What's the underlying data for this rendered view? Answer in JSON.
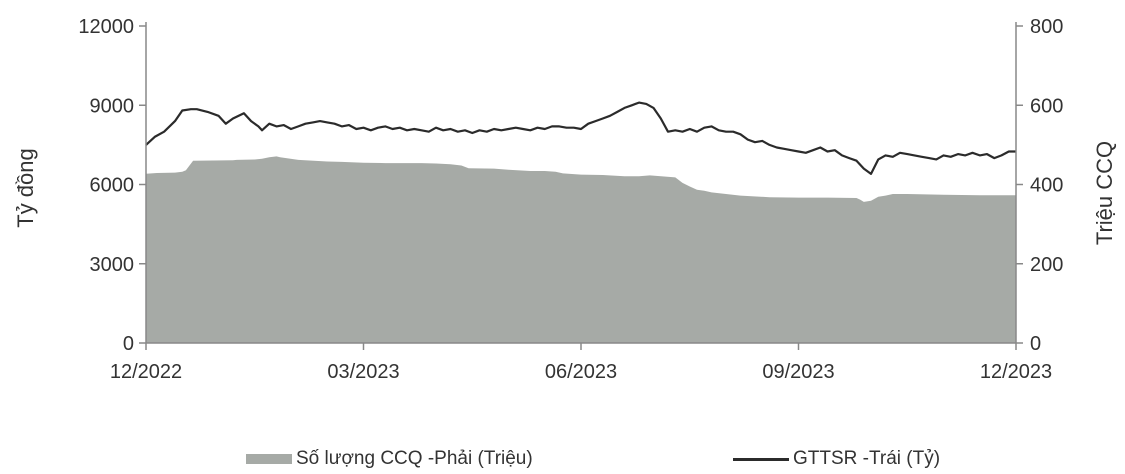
{
  "chart_data": {
    "type": "area+line",
    "title": "",
    "ylabel_left": "Tỷ đồng",
    "ylabel_right": "Triệu CCQ",
    "ylim_left": [
      0,
      12000
    ],
    "ylim_right": [
      0,
      800
    ],
    "yticks_left": [
      "0",
      "3000",
      "6000",
      "9000",
      "12000"
    ],
    "yticks_right": [
      "0",
      "200",
      "400",
      "600",
      "800"
    ],
    "xlim": [
      0,
      12
    ],
    "xticks": [
      {
        "label": "12/2022",
        "x": 0
      },
      {
        "label": "03/2023",
        "x": 3
      },
      {
        "label": "06/2023",
        "x": 6
      },
      {
        "label": "09/2023",
        "x": 9
      },
      {
        "label": "12/2023",
        "x": 12
      }
    ],
    "grid": false,
    "legend_placement": "bottom",
    "colors": {
      "area": "#a6aaa6",
      "line": "#2b2b2b",
      "axis": "#888888"
    },
    "series": [
      {
        "name": "Số lượng CCQ -Phải (Triệu)",
        "type": "area",
        "axis": "right",
        "x": [
          0,
          0.15,
          0.4,
          0.5,
          0.55,
          0.65,
          1.2,
          1.25,
          1.5,
          1.6,
          1.7,
          1.8,
          1.85,
          2.1,
          2.5,
          2.7,
          3.0,
          3.3,
          3.6,
          3.8,
          4.0,
          4.2,
          4.35,
          4.45,
          4.8,
          5.0,
          5.3,
          5.5,
          5.65,
          5.75,
          6.0,
          6.3,
          6.6,
          6.8,
          6.95,
          7.3,
          7.4,
          7.5,
          7.6,
          7.7,
          7.8,
          8.0,
          8.2,
          8.6,
          9.0,
          9.4,
          9.8,
          9.85,
          9.9,
          10.0,
          10.1,
          10.2,
          10.3,
          10.5,
          11.0,
          11.5,
          12.0
        ],
        "y": [
          427,
          429,
          430,
          432,
          436,
          460,
          461,
          462,
          463,
          465,
          469,
          471,
          469,
          462,
          458,
          457,
          455,
          454,
          454,
          454,
          453,
          451,
          448,
          441,
          440,
          437,
          434,
          434,
          432,
          428,
          425,
          424,
          421,
          421,
          423,
          418,
          404,
          395,
          387,
          384,
          380,
          376,
          372,
          368,
          367,
          367,
          366,
          362,
          356,
          359,
          369,
          372,
          376,
          376,
          374,
          373,
          373
        ]
      },
      {
        "name": "GTTSR -Trái (Tỷ)",
        "type": "line",
        "axis": "left",
        "x": [
          0,
          0.12,
          0.25,
          0.4,
          0.5,
          0.62,
          0.7,
          0.85,
          1.0,
          1.1,
          1.2,
          1.35,
          1.45,
          1.55,
          1.6,
          1.7,
          1.8,
          1.9,
          2.0,
          2.1,
          2.2,
          2.3,
          2.4,
          2.5,
          2.6,
          2.7,
          2.8,
          2.9,
          3.0,
          3.1,
          3.2,
          3.3,
          3.4,
          3.5,
          3.6,
          3.7,
          3.8,
          3.9,
          4.0,
          4.1,
          4.2,
          4.3,
          4.4,
          4.5,
          4.6,
          4.7,
          4.8,
          4.9,
          5.0,
          5.1,
          5.2,
          5.3,
          5.4,
          5.5,
          5.6,
          5.7,
          5.8,
          5.9,
          6.0,
          6.1,
          6.2,
          6.3,
          6.4,
          6.5,
          6.6,
          6.7,
          6.8,
          6.9,
          7.0,
          7.1,
          7.2,
          7.3,
          7.4,
          7.5,
          7.6,
          7.7,
          7.8,
          7.9,
          8.0,
          8.1,
          8.2,
          8.3,
          8.4,
          8.5,
          8.6,
          8.7,
          8.8,
          8.9,
          9.0,
          9.1,
          9.2,
          9.3,
          9.4,
          9.5,
          9.6,
          9.7,
          9.8,
          9.9,
          10.0,
          10.1,
          10.2,
          10.3,
          10.4,
          10.5,
          10.6,
          10.7,
          10.8,
          10.9,
          11.0,
          11.1,
          11.2,
          11.3,
          11.4,
          11.5,
          11.6,
          11.7,
          11.8,
          11.9,
          12.0
        ],
        "y": [
          7500,
          7800,
          8000,
          8400,
          8800,
          8850,
          8850,
          8750,
          8600,
          8300,
          8500,
          8700,
          8400,
          8200,
          8050,
          8300,
          8200,
          8250,
          8100,
          8200,
          8300,
          8350,
          8400,
          8350,
          8300,
          8200,
          8250,
          8100,
          8150,
          8050,
          8150,
          8200,
          8100,
          8150,
          8050,
          8100,
          8050,
          8000,
          8150,
          8050,
          8100,
          8000,
          8050,
          7950,
          8050,
          8000,
          8100,
          8050,
          8100,
          8150,
          8100,
          8050,
          8150,
          8100,
          8200,
          8200,
          8150,
          8150,
          8100,
          8300,
          8400,
          8500,
          8600,
          8750,
          8900,
          9000,
          9100,
          9050,
          8900,
          8500,
          8000,
          8050,
          8000,
          8100,
          8000,
          8150,
          8200,
          8050,
          8000,
          8000,
          7900,
          7700,
          7600,
          7650,
          7500,
          7400,
          7350,
          7300,
          7250,
          7200,
          7300,
          7400,
          7250,
          7300,
          7100,
          7000,
          6900,
          6600,
          6400,
          6950,
          7100,
          7050,
          7200,
          7150,
          7100,
          7050,
          7000,
          6950,
          7100,
          7050,
          7150,
          7100,
          7200,
          7100,
          7150,
          7000,
          7100,
          7250,
          7250
        ]
      }
    ]
  }
}
